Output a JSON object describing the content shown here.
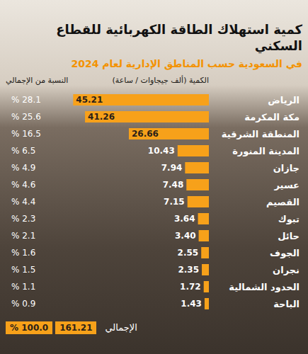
{
  "chart_data": {
    "type": "bar",
    "orientation": "horizontal",
    "title": "كمية استهلاك الطاقة الكهربائية للقطاع السكني",
    "subtitle": "في السعودية حسب المناطق الإدارية لعام 2024",
    "value_header": "الكمية (ألف جيجاوات / ساعة)",
    "share_header": "النسبة من الإجمالي",
    "categories": [
      "الرياض",
      "مكة المكرمة",
      "المنطقة الشرقية",
      "المدينة المنورة",
      "جازان",
      "عسير",
      "القصيم",
      "تبوك",
      "حائل",
      "الجوف",
      "نجران",
      "الحدود الشمالية",
      "الباحة"
    ],
    "values": [
      45.21,
      41.26,
      26.66,
      10.43,
      7.94,
      7.48,
      7.15,
      3.64,
      3.4,
      2.55,
      2.35,
      1.72,
      1.43
    ],
    "value_labels": [
      "45.21",
      "41.26",
      "26.66",
      "10.43",
      "7.94",
      "7.48",
      "7.15",
      "3.64",
      "3.40",
      "2.55",
      "2.35",
      "1.72",
      "1.43"
    ],
    "share_labels": [
      "% 28.1",
      "% 25.6",
      "% 16.5",
      "% 6.5",
      "% 4.9",
      "% 4.6",
      "% 4.4",
      "% 2.3",
      "% 2.1",
      "% 1.6",
      "% 1.5",
      "% 1.1",
      "% 0.9"
    ],
    "total_label": "الإجمالي",
    "total": 161.21,
    "total_share_label": "% 100.0",
    "color": "#f7a11a",
    "xlim": [
      0,
      50
    ],
    "tick_labels": "y",
    "data_labels": true
  }
}
